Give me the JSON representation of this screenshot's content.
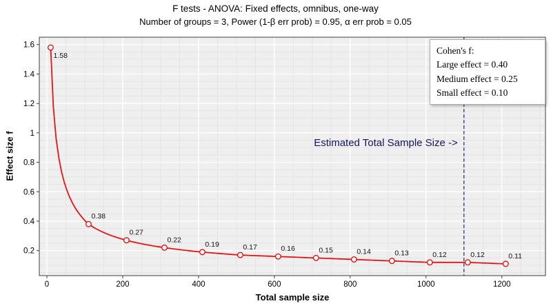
{
  "header": {
    "title": "F tests - ANOVA: Fixed effects, omnibus, one-way",
    "subtitle": "Number of groups = 3, Power (1-β err prob) = 0.95, α err prob = 0.05"
  },
  "axes": {
    "xlabel": "Total sample size",
    "ylabel": "Effect size f"
  },
  "legend": {
    "title": "Cohen's f:",
    "items": [
      "Large effect = 0.40",
      "Medium effect = 0.25",
      "Small effect = 0.10"
    ]
  },
  "chart_data": {
    "type": "line",
    "title": "F tests - ANOVA: Fixed effects, omnibus, one-way",
    "subtitle": "Number of groups = 3, Power (1-β err prob) = 0.95, α err prob = 0.05",
    "xlabel": "Total sample size",
    "ylabel": "Effect size f",
    "x": [
      10,
      110,
      210,
      310,
      410,
      510,
      610,
      710,
      810,
      910,
      1010,
      1110,
      1210
    ],
    "y": [
      1.58,
      0.38,
      0.27,
      0.22,
      0.19,
      0.17,
      0.16,
      0.15,
      0.14,
      0.13,
      0.12,
      0.12,
      0.11
    ],
    "point_labels": [
      "1.58",
      "0.38",
      "0.27",
      "0.22",
      "0.19",
      "0.17",
      "0.16",
      "0.15",
      "0.14",
      "0.13",
      "0.12",
      "0.12",
      "0.11"
    ],
    "xticks": [
      0,
      200,
      400,
      600,
      800,
      1000,
      1200
    ],
    "ytick_values": [
      0.2,
      0.4,
      0.6,
      0.8,
      1,
      1.2,
      1.4,
      1.6
    ],
    "ytick_labels": [
      "0.2",
      "0.4",
      "0.6",
      "0.8",
      "1",
      "1.2",
      "1.4",
      "1.6"
    ],
    "xlim": [
      -20,
      1315
    ],
    "ylim": [
      0.03,
      1.65
    ],
    "grid": true,
    "legend_position": "top-right",
    "vline": {
      "x": 1100,
      "style": "dashed",
      "color": "#26267f",
      "label": "Estimated Total Sample Size ->",
      "label_color": "#14145f"
    },
    "style": {
      "line": "#e81212",
      "marker": "open-circle",
      "plot_bg": "#efefef",
      "minor_grid": "#e3e3e3",
      "major_grid": "#ffffff",
      "frame": "#3c3c3c"
    }
  }
}
